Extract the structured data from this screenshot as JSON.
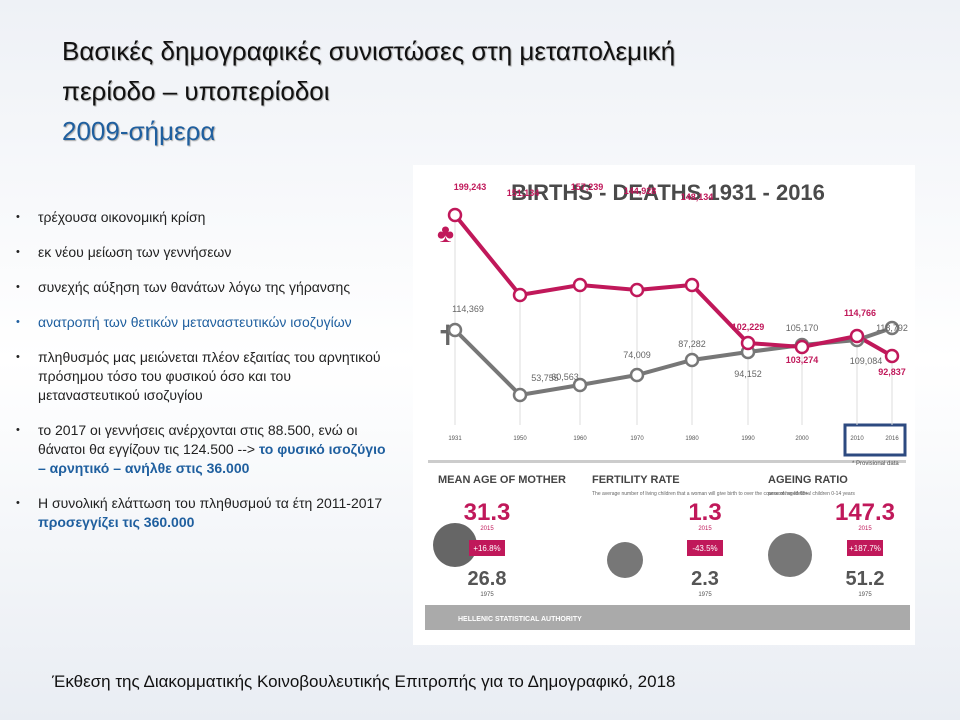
{
  "header": {
    "title_line1": "Βασικές δημογραφικές συνιστώσες στη μεταπολεμική",
    "title_line2": "περίοδο – υποπερίοδοι",
    "subtitle": "2009-σήμερα"
  },
  "bullets": [
    {
      "text": "τρέχουσα οικονομική κρίση"
    },
    {
      "text": "εκ νέου μείωση των γεννήσεων"
    },
    {
      "text": "συνεχής αύξηση των θανάτων λόγω της γήρανσης"
    },
    {
      "text": "ανατροπή των θετικών μεταναστευτικών ισοζυγίων",
      "blue": true
    },
    {
      "text": "πληθυσμός μας μειώνεται πλέον εξαιτίας του αρνητικού πρόσημου τόσο του φυσικού όσο και του μεταναστευτικού ισοζυγίου"
    },
    {
      "text": "το 2017 οι γεννήσεις ανέρχονται στις 88.500, ενώ οι θάνατοι θα εγγίζουν τις 124.500 -->",
      "highlight": "το φυσικό ισοζύγιο – αρνητικό – ανήλθε στις 36.000"
    },
    {
      "text": "Η συνολική ελάττωση του πληθυσμού τα έτη 2011-2017",
      "highlight": "προσεγγίζει τις 360.000"
    }
  ],
  "infographic": {
    "title": "BIRTHS - DEATHS 1931 - 2016",
    "years": [
      "1931",
      "1950",
      "1960",
      "1970",
      "1980",
      "1990",
      "2000",
      "2010",
      "2016"
    ],
    "births": [
      "199,243",
      "151,134",
      "157,239",
      "144,928",
      "148,134",
      "102,229",
      "103,274",
      "114,766",
      "92,837"
    ],
    "deaths": [
      "114,369",
      "53,755",
      "60,563",
      "74,009",
      "87,282",
      "94,152",
      "105,170",
      "109,084",
      "118,792"
    ],
    "note": "* Provisional data",
    "panels": [
      {
        "title": "MEAN AGE OF MOTHER",
        "current": "31.3",
        "current_year": "2015",
        "change": "+16.8%",
        "previous": "26.8",
        "previous_year": "1975"
      },
      {
        "title": "FERTILITY RATE",
        "description": "The average number of living children that a woman will give birth to over the course of her lifetime.",
        "current": "1.3",
        "current_year": "2015",
        "change": "-43.5%",
        "previous": "2.3",
        "previous_year": "1975"
      },
      {
        "title": "AGEING RATIO",
        "description": "persons aged 65+ / children 0-14 years",
        "current": "147.3",
        "current_year": "2015",
        "change": "+187.7%",
        "previous": "51.2",
        "previous_year": "1975"
      }
    ],
    "footer": "HELLENIC STATISTICAL AUTHORITY"
  },
  "citation": "Έκθεση της Διακομματικής Κοινοβουλευτικής Επιτροπής για το Δημογραφικό, 2018"
}
